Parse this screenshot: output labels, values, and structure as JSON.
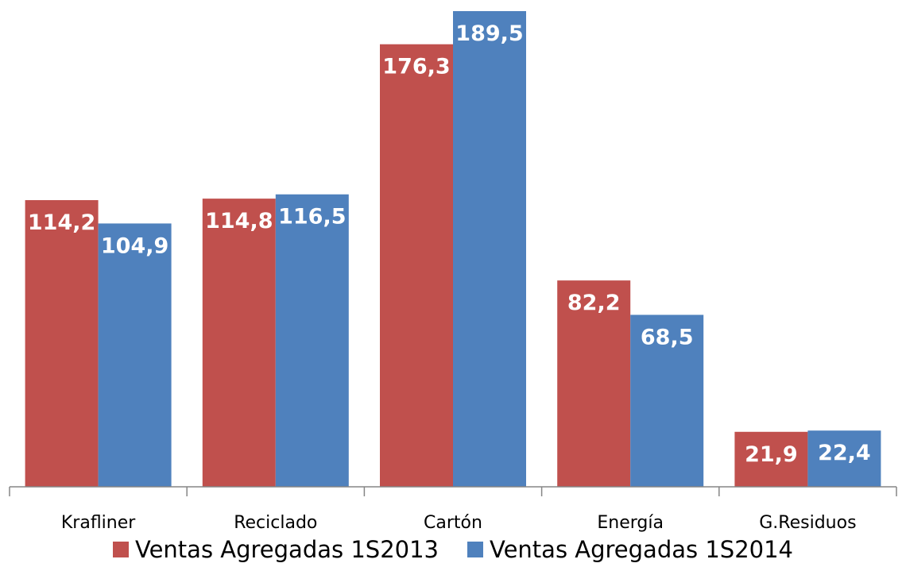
{
  "chart_data": {
    "type": "bar",
    "categories": [
      "Krafliner",
      "Reciclado",
      "Cartón",
      "Energía",
      "G.Residuos"
    ],
    "series": [
      {
        "name": "Ventas Agregadas 1S2013",
        "color": "#C0504D",
        "values": [
          114.2,
          114.8,
          176.3,
          82.2,
          21.9
        ],
        "labels": [
          "114,2",
          "114,8",
          "176,3",
          "82,2",
          "21,9"
        ]
      },
      {
        "name": "Ventas Agregadas 1S2014",
        "color": "#4F81BD",
        "values": [
          104.9,
          116.5,
          189.5,
          68.5,
          22.4
        ],
        "labels": [
          "104,9",
          "116,5",
          "189,5",
          "68,5",
          "22,4"
        ]
      }
    ],
    "ylim": [
      0,
      189.5
    ],
    "grid": false,
    "legend": "bottom",
    "axis_color": "#868686"
  }
}
